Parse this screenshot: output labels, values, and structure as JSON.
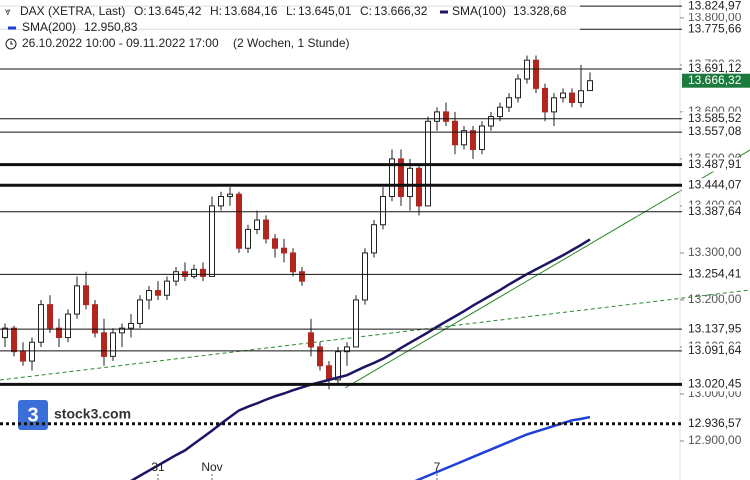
{
  "header": {
    "line1": {
      "title": "DAX (XETRA, Last)",
      "o_label": "O:",
      "o": "13.645,42",
      "h_label": "H:",
      "h": "13.684,16",
      "l_label": "L:",
      "l": "13.645,01",
      "c_label": "C:",
      "c": "13.666,32"
    },
    "range": "26.10.2022 10:00 - 09.11.2022 17:00",
    "period": "(2 Wochen, 1 Stunde)",
    "logo": "stock3.com"
  },
  "chart_data": {
    "type": "candlestick",
    "categories": [
      null,
      null,
      null,
      null,
      null,
      null,
      null,
      null,
      null,
      null,
      null,
      null,
      null,
      null,
      null,
      null,
      null,
      "31",
      null,
      null,
      null,
      null,
      null,
      "Nov",
      null,
      null,
      null,
      null,
      null,
      null,
      null,
      null,
      null,
      null,
      null,
      null,
      null,
      null,
      null,
      null,
      null,
      null,
      null,
      null,
      null,
      null,
      null,
      null,
      "7",
      null,
      null,
      null,
      null,
      null,
      null,
      null,
      null,
      null,
      null,
      null,
      null,
      null,
      null,
      null,
      null,
      null
    ],
    "open": [
      13120,
      13140,
      13090,
      13070,
      13110,
      13190,
      13140,
      13120,
      13170,
      13230,
      13190,
      13130,
      13080,
      13130,
      13140,
      13150,
      13200,
      13220,
      13210,
      13240,
      13260,
      13250,
      13265,
      13250,
      13400,
      13420,
      13425,
      13310,
      13350,
      13370,
      13330,
      13310,
      13300,
      13260,
      13130,
      13100,
      13060,
      13030,
      13090,
      13100,
      13200,
      13300,
      13360,
      13420,
      13500,
      13420,
      13480,
      13400,
      13580,
      13600,
      13580,
      13530,
      13560,
      13520,
      13570,
      13590,
      13610,
      13630,
      13670,
      13710,
      13650,
      13600,
      13630,
      13640,
      13620,
      13645.42
    ],
    "high": [
      13150,
      13145,
      13110,
      13120,
      13200,
      13210,
      13160,
      13180,
      13250,
      13260,
      13200,
      13160,
      13140,
      13150,
      13170,
      13210,
      13230,
      13240,
      13250,
      13270,
      13280,
      13275,
      13280,
      13420,
      13430,
      13440,
      13430,
      13360,
      13390,
      13380,
      13340,
      13330,
      13310,
      13270,
      13160,
      13110,
      13070,
      13100,
      13110,
      13210,
      13310,
      13370,
      13440,
      13520,
      13520,
      13500,
      13490,
      13590,
      13610,
      13620,
      13600,
      13570,
      13570,
      13580,
      13600,
      13620,
      13640,
      13680,
      13720,
      13720,
      13660,
      13640,
      13650,
      13650,
      13700,
      13684.16
    ],
    "low": [
      13100,
      13080,
      13060,
      13050,
      13100,
      13130,
      13100,
      13110,
      13160,
      13180,
      13120,
      13060,
      13070,
      13100,
      13120,
      13140,
      13180,
      13200,
      13200,
      13230,
      13240,
      13245,
      13240,
      13250,
      13390,
      13400,
      13300,
      13300,
      13340,
      13320,
      13290,
      13280,
      13250,
      13230,
      13080,
      13050,
      13010,
      13020,
      13060,
      13100,
      13190,
      13290,
      13350,
      13410,
      13400,
      13390,
      13380,
      13400,
      13560,
      13570,
      13510,
      13520,
      13500,
      13510,
      13560,
      13580,
      13600,
      13620,
      13660,
      13640,
      13580,
      13570,
      13620,
      13610,
      13610,
      13645.01
    ],
    "close": [
      13140,
      13090,
      13070,
      13110,
      13190,
      13140,
      13120,
      13170,
      13230,
      13190,
      13130,
      13080,
      13130,
      13140,
      13150,
      13200,
      13220,
      13210,
      13240,
      13260,
      13250,
      13265,
      13250,
      13400,
      13420,
      13425,
      13310,
      13350,
      13370,
      13330,
      13310,
      13300,
      13260,
      13240,
      13100,
      13060,
      13030,
      13090,
      13100,
      13200,
      13300,
      13360,
      13420,
      13500,
      13420,
      13480,
      13400,
      13580,
      13600,
      13580,
      13530,
      13560,
      13520,
      13570,
      13590,
      13610,
      13630,
      13670,
      13710,
      13650,
      13600,
      13630,
      13640,
      13620,
      13645,
      13666.32
    ],
    "up_color": "#ffffff",
    "down_color": "#b3261e",
    "series": [
      {
        "name": "SMA(100)",
        "color": "#1c1464",
        "last": "13.328,68",
        "values": [
          null,
          null,
          null,
          null,
          null,
          null,
          null,
          null,
          null,
          null,
          null,
          null,
          null,
          null,
          12815,
          12826,
          12837,
          12848,
          12859,
          12870,
          12880,
          12894,
          12908,
          12922,
          12937,
          12951,
          12965,
          12973,
          12980,
          12988,
          12995,
          13001,
          13008,
          13014,
          13020,
          13025,
          13030,
          13035,
          13040,
          13049,
          13058,
          13066,
          13075,
          13086,
          13098,
          13109,
          13120,
          13131,
          13143,
          13154,
          13165,
          13176,
          13188,
          13199,
          13210,
          13221,
          13233,
          13244,
          13255,
          13265,
          13275,
          13285,
          13295,
          13306,
          13317,
          13328.68
        ]
      },
      {
        "name": "SMA(200)",
        "color": "#1f3fd6",
        "last": "12.950,83",
        "values": [
          null,
          null,
          null,
          null,
          null,
          null,
          null,
          null,
          null,
          null,
          null,
          null,
          null,
          null,
          null,
          null,
          null,
          null,
          null,
          null,
          null,
          null,
          null,
          null,
          null,
          null,
          null,
          null,
          null,
          null,
          null,
          null,
          null,
          null,
          null,
          null,
          null,
          null,
          null,
          null,
          null,
          null,
          null,
          null,
          null,
          12810,
          12818,
          12826,
          12834,
          12842,
          12850,
          12858,
          12866,
          12874,
          12882,
          12890,
          12898,
          12906,
          12914,
          12920,
          12926,
          12932,
          12938,
          12944,
          12947,
          12950.83
        ]
      }
    ],
    "ylim": [
      12817,
      13838
    ],
    "yticks": [
      {
        "value": 12900,
        "label": "12.900,00"
      },
      {
        "value": 13000,
        "label": "13.000,00"
      },
      {
        "value": 13100,
        "label": "13.100,00"
      },
      {
        "value": 13200,
        "label": "13.200,00"
      },
      {
        "value": 13300,
        "label": "13.300,00"
      },
      {
        "value": 13400,
        "label": "13.400,00"
      },
      {
        "value": 13500,
        "label": "13.500,00"
      },
      {
        "value": 13600,
        "label": "13.600,00"
      },
      {
        "value": 13700,
        "label": "13.700,00"
      },
      {
        "value": 13800,
        "label": "13.800,00"
      }
    ],
    "levels": [
      {
        "value": 13824.97,
        "label": "13.824,97",
        "style": "thin"
      },
      {
        "value": 13775.66,
        "label": "13.775,66",
        "style": "thin"
      },
      {
        "value": 13691.12,
        "label": "13.691,12",
        "style": "thin"
      },
      {
        "value": 13585.52,
        "label": "13.585,52",
        "style": "thin"
      },
      {
        "value": 13557.08,
        "label": "13.557,08",
        "style": "thin"
      },
      {
        "value": 13487.91,
        "label": "13.487,91",
        "style": "thick"
      },
      {
        "value": 13444.07,
        "label": "13.444,07",
        "style": "thick"
      },
      {
        "value": 13387.64,
        "label": "13.387,64",
        "style": "thin"
      },
      {
        "value": 13254.41,
        "label": "13.254,41",
        "style": "thin"
      },
      {
        "value": 13137.95,
        "label": "13.137,95",
        "style": "thin"
      },
      {
        "value": 13091.64,
        "label": "13.091,64",
        "style": "thin"
      },
      {
        "value": 13020.45,
        "label": "13.020,45",
        "style": "thick"
      },
      {
        "value": 12936.57,
        "label": "12.936,57",
        "style": "dotted"
      }
    ],
    "last_price": {
      "value": 13666.32,
      "label": "13.666,32",
      "color": "#1b7a3c"
    }
  }
}
